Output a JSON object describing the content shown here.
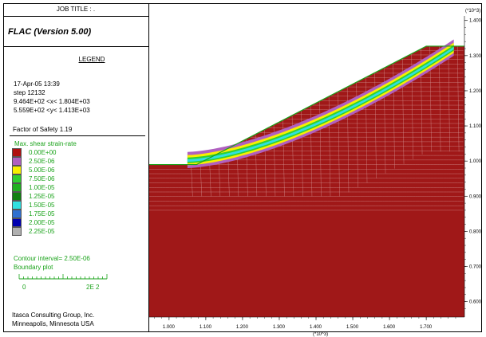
{
  "panel": {
    "job_title": "JOB TITLE : .",
    "program": "FLAC (Version 5.00)",
    "legend_title": "LEGEND",
    "date_time": "17-Apr-05  13:39",
    "step": "step    12132",
    "x_range": "9.464E+02 <x<  1.804E+03",
    "y_range": "5.559E+02 <y<  1.413E+03",
    "factor_of_safety": "Factor of Safety  1.19",
    "shear_label": "Max. shear strain-rate",
    "contour_interval": "Contour interval=  2.50E-06",
    "boundary_plot": "Boundary plot",
    "scale_left": "0",
    "scale_right": "2E  2",
    "company_line1": "Itasca Consulting Group, Inc.",
    "company_line2": "Minneapolis, Minnesota  USA"
  },
  "colors": {
    "soil": "#a01818",
    "boundary": "#1aa31a",
    "text_green": "#1aa31a"
  },
  "legend_items": [
    {
      "label": "0.00E+00",
      "color": "#b01010"
    },
    {
      "label": "2.50E-06",
      "color": "#b060c0"
    },
    {
      "label": "5.00E-06",
      "color": "#f8f000"
    },
    {
      "label": "7.50E-06",
      "color": "#30d030"
    },
    {
      "label": "1.00E-05",
      "color": "#20b020"
    },
    {
      "label": "1.25E-05",
      "color": "#108010"
    },
    {
      "label": "1.50E-05",
      "color": "#30e0e0"
    },
    {
      "label": "1.75E-05",
      "color": "#3070d0"
    },
    {
      "label": "2.00E-05",
      "color": "#0000b0"
    },
    {
      "label": "2.25E-05",
      "color": "#b0b0b0"
    }
  ],
  "chart_data": {
    "type": "heatmap",
    "x_multiplier": "(*10^3)",
    "y_multiplier": "(*10^3)",
    "xlim": [
      0.946,
      1.804
    ],
    "ylim": [
      0.556,
      1.413
    ],
    "x_ticks": [
      "1.000",
      "1.100",
      "1.200",
      "1.300",
      "1.400",
      "1.500",
      "1.600",
      "1.700"
    ],
    "y_ticks": [
      "1.400",
      "1.300",
      "1.200",
      "1.100",
      "1.000",
      "0.900",
      "0.800",
      "0.700",
      "0.600"
    ],
    "slope_profile": [
      [
        0.946,
        0.99
      ],
      [
        1.0,
        0.99
      ],
      [
        1.075,
        0.99
      ],
      [
        1.7,
        1.327
      ],
      [
        1.804,
        1.327
      ]
    ]
  }
}
